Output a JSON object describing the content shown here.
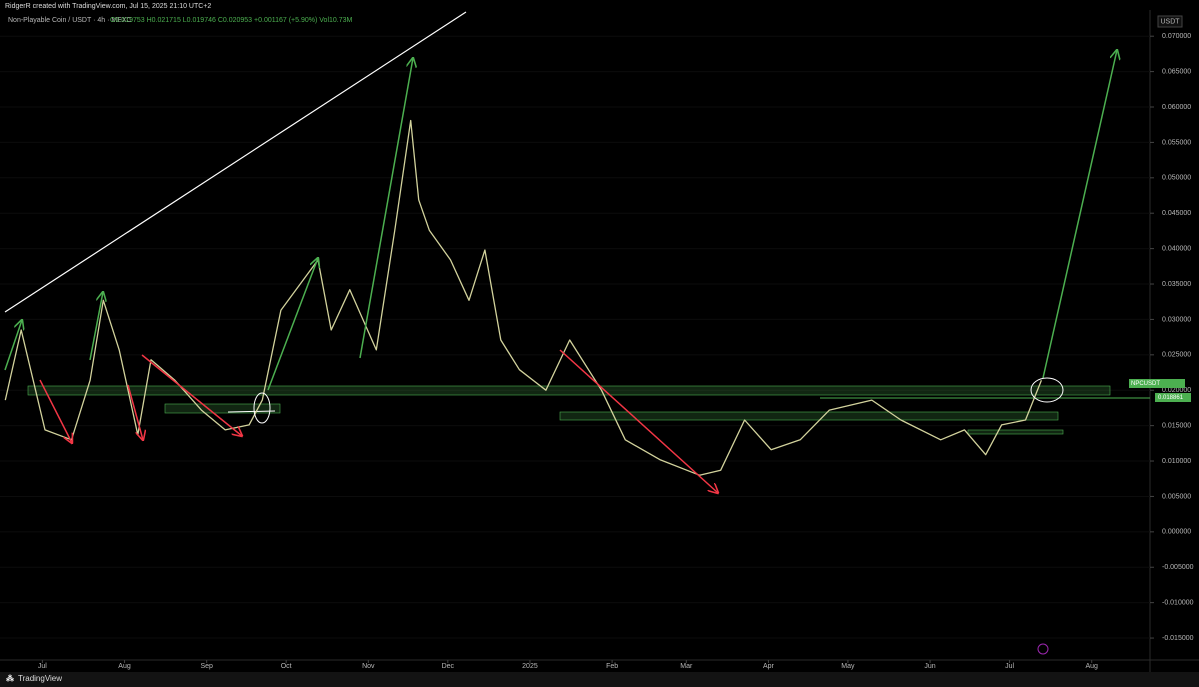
{
  "header": {
    "credit": "RidgerR created with TradingView.com, Jul 15, 2025 21:10 UTC+2"
  },
  "footer": {
    "brand": "TradingView"
  },
  "chart_data": {
    "type": "line",
    "title": "Non-Playable Coin / USDT · 4h · MEXC",
    "subtitle": "O0.019753 H0.021715 L0.019746 C0.020953 +0.001167 (+5.90%) Vol10.73M",
    "currency": "USDT",
    "color": "#d2d29c",
    "x": [
      -14,
      -8,
      1,
      11,
      18,
      23,
      29,
      36,
      41,
      50,
      60,
      69,
      78,
      83,
      90,
      104,
      109,
      116,
      126,
      133,
      139,
      142,
      146,
      154,
      161,
      167,
      173,
      180,
      190,
      199,
      211,
      220,
      233,
      248,
      256,
      265,
      275,
      286,
      297,
      313,
      324,
      339,
      348,
      356,
      362,
      371,
      377
    ],
    "values": [
      0.0186,
      0.0285,
      0.0144,
      0.013,
      0.0214,
      0.0327,
      0.0257,
      0.0137,
      0.0243,
      0.0214,
      0.0172,
      0.0144,
      0.0151,
      0.0186,
      0.0313,
      0.0384,
      0.0285,
      0.0342,
      0.0257,
      0.0426,
      0.0581,
      0.0469,
      0.0426,
      0.0384,
      0.0327,
      0.0398,
      0.0271,
      0.0229,
      0.02,
      0.0271,
      0.02,
      0.013,
      0.0102,
      0.008,
      0.0087,
      0.0158,
      0.0116,
      0.013,
      0.0172,
      0.0186,
      0.0158,
      0.013,
      0.0144,
      0.0109,
      0.0151,
      0.0158,
      0.0214
    ],
    "xlim": [
      -16,
      418
    ],
    "xticks": [
      {
        "value": 0,
        "label": "Jul"
      },
      {
        "value": 31,
        "label": "Aug"
      },
      {
        "value": 62,
        "label": "Sep"
      },
      {
        "value": 92,
        "label": "Oct"
      },
      {
        "value": 123,
        "label": "Nov"
      },
      {
        "value": 153,
        "label": "Dec"
      },
      {
        "value": 184,
        "label": "2025"
      },
      {
        "value": 215,
        "label": "Feb"
      },
      {
        "value": 243,
        "label": "Mar"
      },
      {
        "value": 274,
        "label": "Apr"
      },
      {
        "value": 304,
        "label": "May"
      },
      {
        "value": 335,
        "label": "Jun"
      },
      {
        "value": 365,
        "label": "Jul"
      },
      {
        "value": 396,
        "label": "Aug"
      }
    ],
    "ylim": [
      -0.0181,
      0.0737
    ],
    "yticks": [
      {
        "value": 0.07,
        "label": "0.070000"
      },
      {
        "value": 0.065,
        "label": "0.065000"
      },
      {
        "value": 0.06,
        "label": "0.060000"
      },
      {
        "value": 0.055,
        "label": "0.055000"
      },
      {
        "value": 0.05,
        "label": "0.050000"
      },
      {
        "value": 0.045,
        "label": "0.045000"
      },
      {
        "value": 0.04,
        "label": "0.040000"
      },
      {
        "value": 0.035,
        "label": "0.035000"
      },
      {
        "value": 0.03,
        "label": "0.030000"
      },
      {
        "value": 0.025,
        "label": "0.025000"
      },
      {
        "value": 0.02,
        "label": "0.020000"
      },
      {
        "value": 0.015,
        "label": "0.015000"
      },
      {
        "value": 0.01,
        "label": "0.010000"
      },
      {
        "value": 0.005,
        "label": "0.005000"
      },
      {
        "value": 0,
        "label": "0.000000"
      },
      {
        "value": -0.005,
        "label": "-0.005000"
      },
      {
        "value": -0.01,
        "label": "-0.010000"
      },
      {
        "value": -0.015,
        "label": "-0.015000"
      }
    ],
    "price_tags": {
      "symbol": "NPCUSDT",
      "level": "0.018861"
    }
  }
}
